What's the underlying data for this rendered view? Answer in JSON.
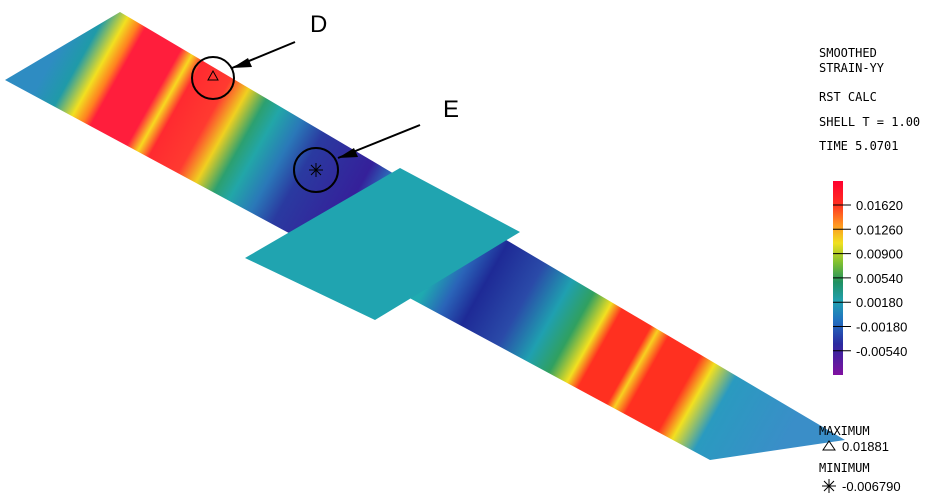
{
  "callouts": {
    "d": "D",
    "e": "E"
  },
  "header": {
    "lines": [
      "SMOOTHED",
      "STRAIN-YY",
      "RST CALC",
      "SHELL T = 1.00",
      "TIME 5.0701"
    ]
  },
  "legend": {
    "labels": [
      "0.01620",
      "0.01260",
      "0.00900",
      "0.00540",
      "0.00180",
      "-0.00180",
      "-0.00540"
    ]
  },
  "extremes": {
    "maximum": {
      "title": "MAXIMUM",
      "value": "0.01881"
    },
    "minimum": {
      "title": "MINIMUM",
      "value": "-0.006790"
    }
  }
}
